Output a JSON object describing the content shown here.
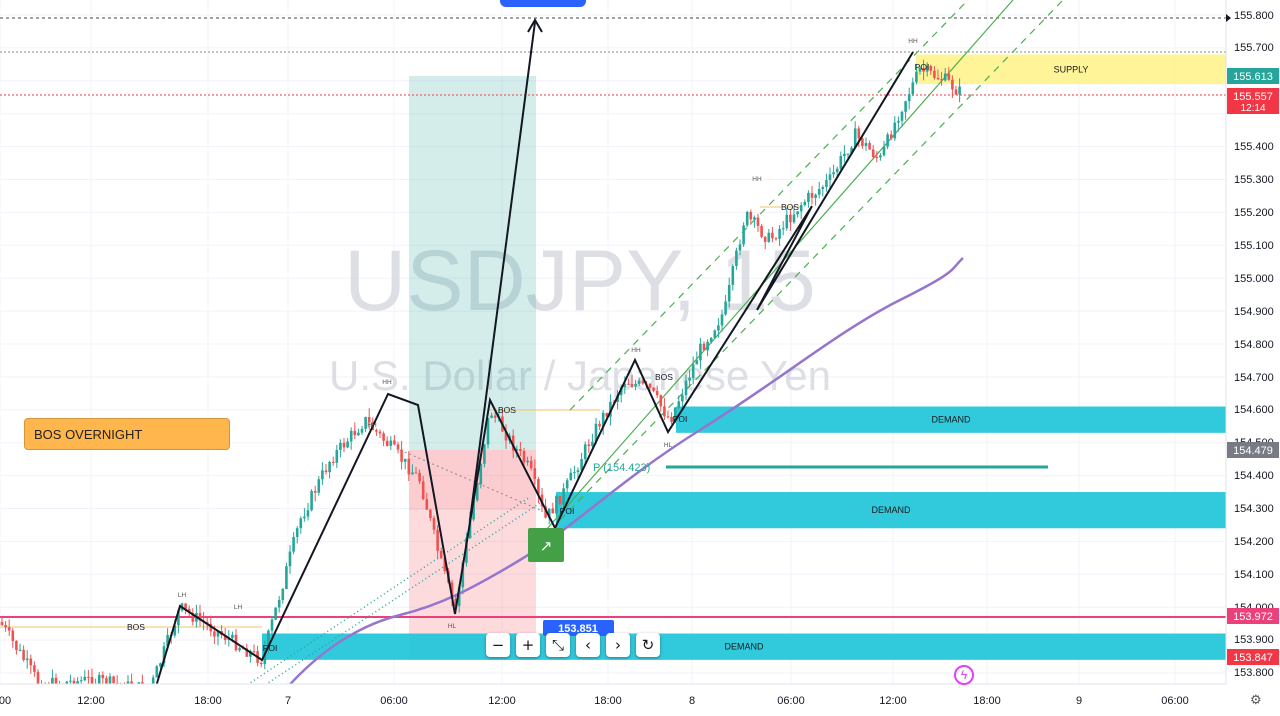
{
  "chart_data": {
    "type": "candlestick",
    "symbol": "USDJPY, 15",
    "description": "U.S. Dollar / Japanese Yen",
    "ylim": [
      153.75,
      155.84
    ],
    "y_ticks": [
      "155.800",
      "155.700",
      "155.400",
      "155.300",
      "155.200",
      "155.100",
      "155.000",
      "154.900",
      "154.800",
      "154.700",
      "154.600",
      "154.500",
      "154.400",
      "154.300",
      "154.200",
      "154.100",
      "154.000",
      "153.900",
      "153.800"
    ],
    "x_ticks": [
      "00",
      "12:00",
      "18:00",
      "7",
      "06:00",
      "12:00",
      "18:00",
      "8",
      "06:00",
      "12:00",
      "18:00",
      "9",
      "06:00"
    ],
    "price_labels": [
      {
        "value": "155.613",
        "color": "#26a69a"
      },
      {
        "value": "155.557",
        "sub": "12:14",
        "color": "#f23645"
      },
      {
        "value": "154.479",
        "color": "#787b86"
      },
      {
        "value": "153.972",
        "color": "#ec407a"
      },
      {
        "value": "153.847",
        "color": "#f23645"
      }
    ],
    "zones": [
      {
        "label": "SUPPLY",
        "low": 155.59,
        "high": 155.68,
        "color": "#fff176"
      },
      {
        "label": "DEMAND",
        "low": 154.53,
        "high": 154.61,
        "color": "#26c6da"
      },
      {
        "label": "DEMAND",
        "low": 154.24,
        "high": 154.35,
        "color": "#26c6da"
      },
      {
        "label": "DEMAND",
        "low": 153.84,
        "high": 153.92,
        "color": "#26c6da"
      }
    ],
    "annotations": [
      "HH",
      "POI",
      "BOS",
      "HL",
      "LH",
      "HH",
      "BOS",
      "HH",
      "BOS",
      "HL",
      "HH",
      "POI",
      "HL",
      "HL",
      "LH",
      "BOS",
      "POI",
      "HH",
      "HH"
    ],
    "callout": "BOS OVERNIGHT",
    "position_label": "153.851",
    "pivot_label": "P (154.423)"
  },
  "toolbar": {
    "buttons": [
      {
        "name": "zoom-out-button",
        "glyph": "−"
      },
      {
        "name": "zoom-in-button",
        "glyph": "+"
      },
      {
        "name": "reset-scale-button",
        "glyph": "⤡"
      },
      {
        "name": "scroll-left-button",
        "glyph": "‹"
      },
      {
        "name": "scroll-right-button",
        "glyph": "›"
      },
      {
        "name": "reset-chart-button",
        "glyph": "↻"
      }
    ]
  },
  "colors": {
    "up": "#26a69a",
    "down": "#ef5350",
    "ma": "#9575cd",
    "trend": "#4caf50"
  }
}
